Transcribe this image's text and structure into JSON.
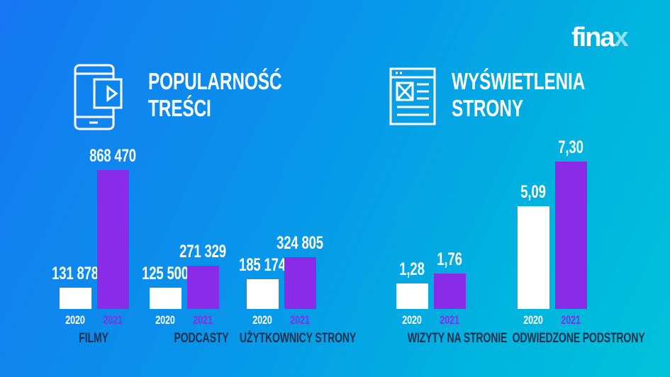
{
  "logo": "finax",
  "colors": {
    "bar_2020": "#ffffff",
    "bar_2021": "#8a2be8",
    "category_label": "#1d3050"
  },
  "chart_data": [
    {
      "type": "bar",
      "title_lines": [
        "POPULARNOŚĆ",
        "TREŚCI"
      ],
      "icon": "phone-video-icon",
      "categories": [
        "FILMY",
        "PODCASTY",
        "UŻYTKOWNICY STRONY"
      ],
      "series": [
        {
          "name": "2020",
          "values": [
            131878,
            125500,
            185174
          ],
          "labels": [
            "131 878",
            "125 500",
            "185 174"
          ]
        },
        {
          "name": "2021",
          "values": [
            868470,
            271329,
            324805
          ],
          "labels": [
            "868 470",
            "271 329",
            "324 805"
          ]
        }
      ]
    },
    {
      "type": "bar",
      "title_lines": [
        "WYŚWIETLENIA",
        "STRONY"
      ],
      "icon": "webpage-icon",
      "categories": [
        "WIZYTY NA STRONIE",
        "ODWIEDZONE PODSTRONY"
      ],
      "series": [
        {
          "name": "2020",
          "values": [
            1.28,
            5.09
          ],
          "labels": [
            "1,28",
            "5,09"
          ]
        },
        {
          "name": "2021",
          "values": [
            1.76,
            7.3
          ],
          "labels": [
            "1,76",
            "7,30"
          ]
        }
      ]
    }
  ]
}
